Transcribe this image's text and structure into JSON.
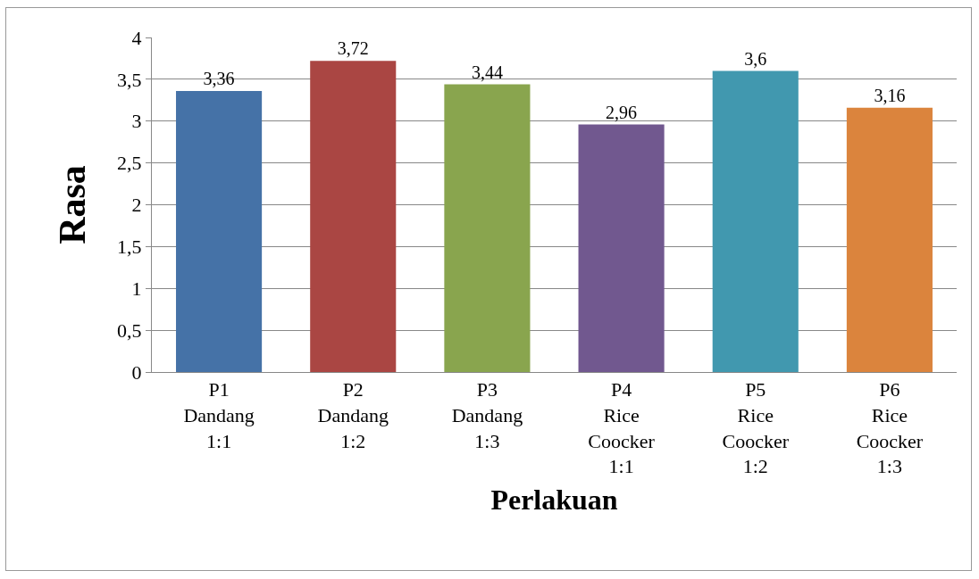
{
  "chart_data": {
    "type": "bar",
    "xlabel": "Perlakuan",
    "ylabel": "Rasa",
    "categories": [
      "P1\nDandang\n1:1",
      "P2\nDandang\n1:2",
      "P3\nDandang\n1:3",
      "P4\nRice\nCoocker\n1:1",
      "P5\nRice\nCoocker\n1:2",
      "P6\nRice\nCoocker\n1:3"
    ],
    "values": [
      3.36,
      3.72,
      3.44,
      2.96,
      3.6,
      3.16
    ],
    "value_labels": [
      "3,36",
      "3,72",
      "3,44",
      "2,96",
      "3,6",
      "3,16"
    ],
    "colors": [
      "#4572a7",
      "#aa4643",
      "#89a54e",
      "#71588f",
      "#4198af",
      "#db843d"
    ],
    "ylim": [
      0,
      4
    ],
    "yticks": [
      0,
      {
        "value": 0.5,
        "label": "0,5"
      },
      1,
      {
        "value": 1.5,
        "label": "1,5"
      },
      2,
      {
        "value": 2.5,
        "label": "2,5"
      },
      3,
      {
        "value": 3.5,
        "label": "3,5"
      },
      4
    ],
    "grid": "y"
  }
}
